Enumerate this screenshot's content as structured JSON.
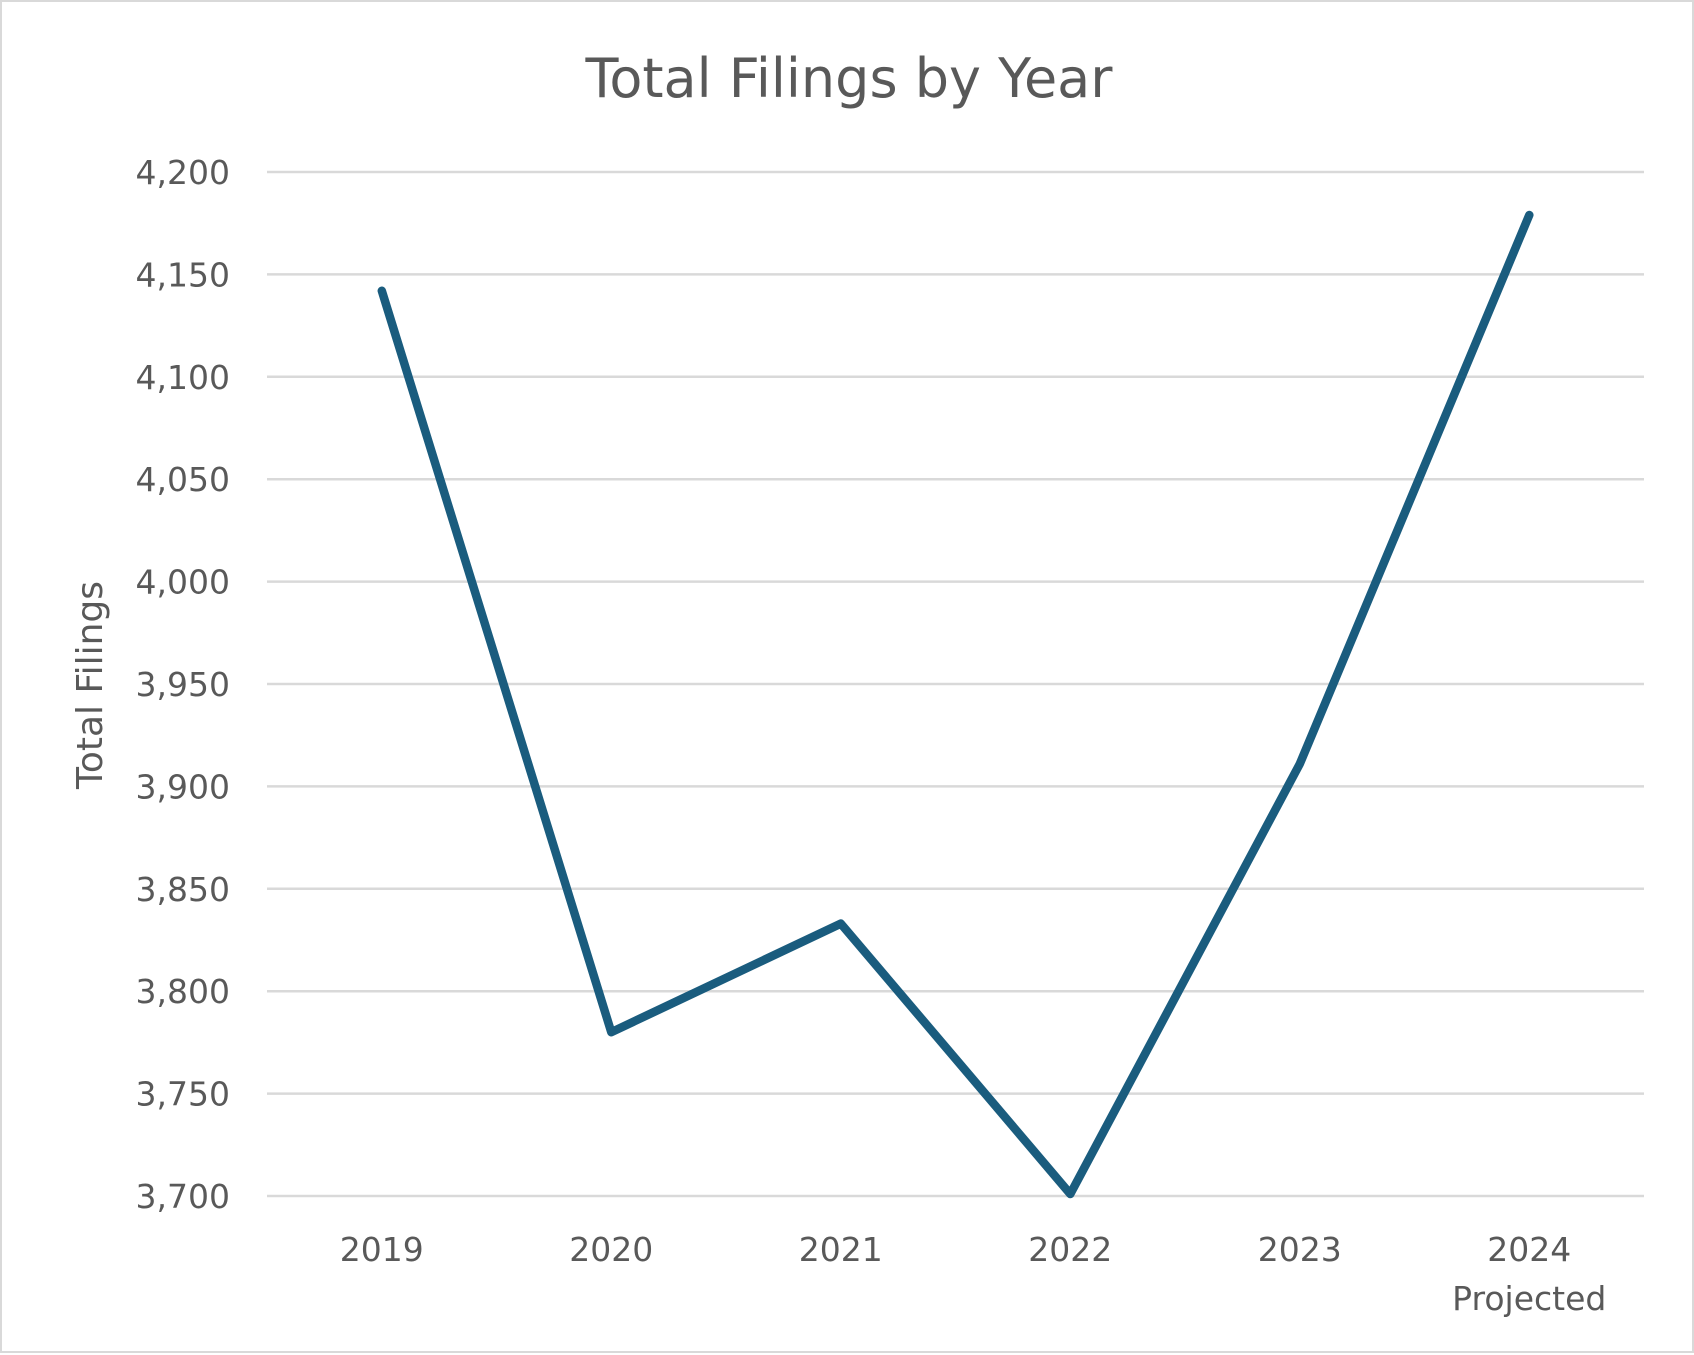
{
  "chart_data": {
    "type": "line",
    "title": "Total Filings by Year",
    "xlabel": "",
    "ylabel": "Total Filings",
    "ylim": [
      3700,
      4200
    ],
    "ytick_step": 50,
    "yticks": [
      "3,700",
      "3,750",
      "3,800",
      "3,850",
      "3,900",
      "3,950",
      "4,000",
      "4,050",
      "4,100",
      "4,150",
      "4,200"
    ],
    "categories": [
      {
        "label": "2019",
        "sublabel": ""
      },
      {
        "label": "2020",
        "sublabel": ""
      },
      {
        "label": "2021",
        "sublabel": ""
      },
      {
        "label": "2022",
        "sublabel": ""
      },
      {
        "label": "2023",
        "sublabel": ""
      },
      {
        "label": "2024",
        "sublabel": "Projected"
      }
    ],
    "values": [
      4142,
      3780,
      3833,
      3701,
      3911,
      4179
    ],
    "grid": true,
    "legend": "none",
    "colors": {
      "line": "#1a5c7e",
      "grid": "#d9d9d9",
      "text": "#595959"
    }
  }
}
